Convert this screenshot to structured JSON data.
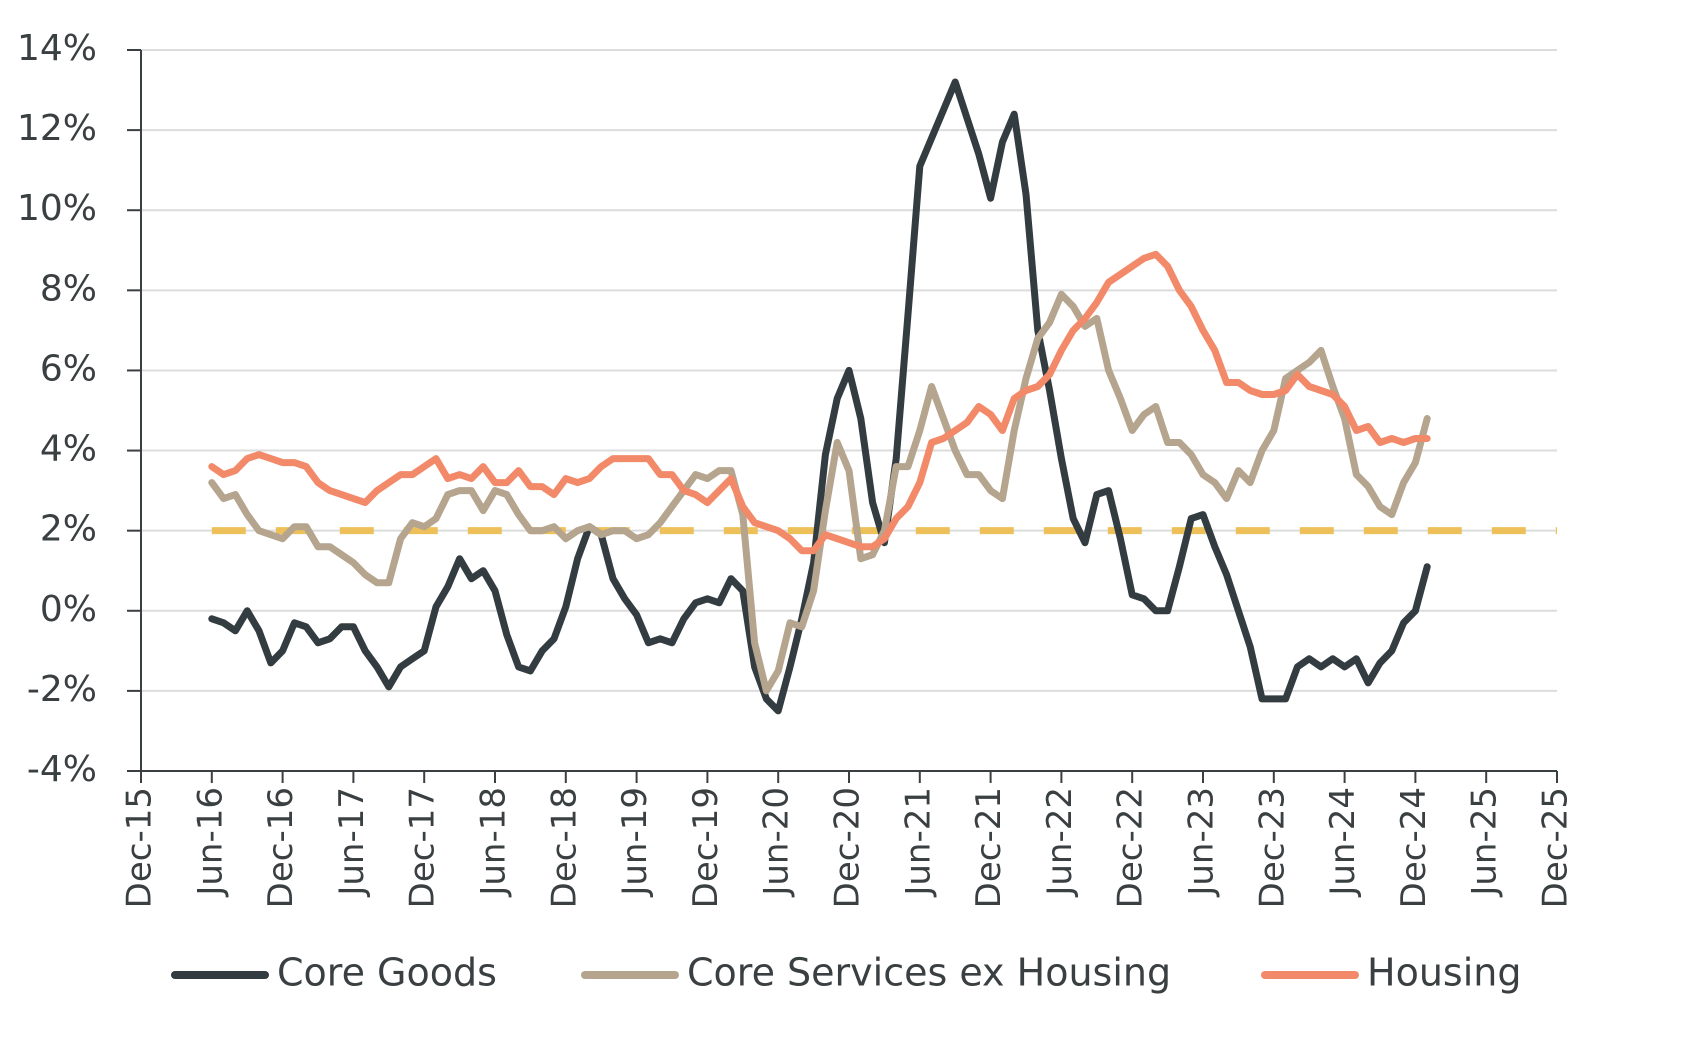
{
  "chart_data": {
    "type": "line",
    "x": [
      "2016-06",
      "2016-07",
      "2016-08",
      "2016-09",
      "2016-10",
      "2016-11",
      "2016-12",
      "2017-01",
      "2017-02",
      "2017-03",
      "2017-04",
      "2017-05",
      "2017-06",
      "2017-07",
      "2017-08",
      "2017-09",
      "2017-10",
      "2017-11",
      "2017-12",
      "2018-01",
      "2018-02",
      "2018-03",
      "2018-04",
      "2018-05",
      "2018-06",
      "2018-07",
      "2018-08",
      "2018-09",
      "2018-10",
      "2018-11",
      "2018-12",
      "2019-01",
      "2019-02",
      "2019-03",
      "2019-04",
      "2019-05",
      "2019-06",
      "2019-07",
      "2019-08",
      "2019-09",
      "2019-10",
      "2019-11",
      "2019-12",
      "2020-01",
      "2020-02",
      "2020-03",
      "2020-04",
      "2020-05",
      "2020-06",
      "2020-07",
      "2020-08",
      "2020-09",
      "2020-10",
      "2020-11",
      "2020-12",
      "2021-01",
      "2021-02",
      "2021-03",
      "2021-04",
      "2021-05",
      "2021-06",
      "2021-07",
      "2021-08",
      "2021-09",
      "2021-10",
      "2021-11",
      "2021-12",
      "2022-01",
      "2022-02",
      "2022-03",
      "2022-04",
      "2022-05",
      "2022-06",
      "2022-07",
      "2022-08",
      "2022-09",
      "2022-10",
      "2022-11",
      "2022-12",
      "2023-01",
      "2023-02",
      "2023-03",
      "2023-04",
      "2023-05",
      "2023-06",
      "2023-07",
      "2023-08",
      "2023-09",
      "2023-10",
      "2023-11",
      "2023-12",
      "2024-01",
      "2024-02",
      "2024-03",
      "2024-04",
      "2024-05",
      "2024-06",
      "2024-07",
      "2024-08",
      "2024-09",
      "2024-10",
      "2024-11",
      "2024-12",
      "2025-01"
    ],
    "series": [
      {
        "name": "Core Goods",
        "color": "#333c40",
        "values": [
          -0.2,
          -0.3,
          -0.5,
          0,
          -0.5,
          -1.3,
          -1.0,
          -0.3,
          -0.4,
          -0.8,
          -0.7,
          -0.4,
          -0.4,
          -1.0,
          -1.4,
          -1.9,
          -1.4,
          -1.2,
          -1.0,
          0.1,
          0.6,
          1.3,
          0.8,
          1.0,
          0.5,
          -0.6,
          -1.4,
          -1.5,
          -1.0,
          -0.7,
          0.1,
          1.3,
          2.1,
          1.9,
          0.8,
          0.3,
          -0.1,
          -0.8,
          -0.7,
          -0.8,
          -0.2,
          0.2,
          0.3,
          0.2,
          0.8,
          0.5,
          -1.4,
          -2.2,
          -2.5,
          -1.4,
          -0.2,
          1.2,
          3.9,
          5.3,
          6.0,
          4.8,
          2.7,
          1.7,
          3.8,
          7.4,
          11.1,
          11.8,
          12.5,
          13.2,
          12.3,
          11.4,
          10.3,
          11.7,
          12.4,
          10.4,
          7.0,
          5.5,
          3.8,
          2.3,
          1.7,
          2.9,
          3.0,
          1.8,
          0.4,
          0.3,
          0.0,
          0.0,
          1.1,
          2.3,
          2.4,
          1.6,
          0.9,
          0.0,
          -0.9,
          -2.2,
          -2.2,
          -2.2,
          -1.4,
          -1.2,
          -1.4,
          -1.2,
          -1.4,
          -1.2,
          -1.8,
          -1.3,
          -1.0,
          -0.3,
          0.0,
          1.1
        ]
      },
      {
        "name": "Core Services ex Housing",
        "color": "#b5a48e",
        "values": [
          3.2,
          2.8,
          2.9,
          2.4,
          2.0,
          1.9,
          1.8,
          2.1,
          2.1,
          1.6,
          1.6,
          1.4,
          1.2,
          0.9,
          0.7,
          0.7,
          1.8,
          2.2,
          2.1,
          2.3,
          2.9,
          3.0,
          3.0,
          2.5,
          3.0,
          2.9,
          2.4,
          2.0,
          2.0,
          2.1,
          1.8,
          2.0,
          2.1,
          1.9,
          2.0,
          2.0,
          1.8,
          1.9,
          2.2,
          2.6,
          3.0,
          3.4,
          3.3,
          3.5,
          3.5,
          2.4,
          -0.8,
          -2.0,
          -1.5,
          -0.3,
          -0.4,
          0.5,
          2.5,
          4.2,
          3.5,
          1.3,
          1.4,
          2.0,
          3.6,
          3.6,
          4.5,
          5.6,
          4.8,
          4.0,
          3.4,
          3.4,
          3.0,
          2.8,
          4.5,
          5.8,
          6.8,
          7.2,
          7.9,
          7.6,
          7.1,
          7.3,
          6.0,
          5.3,
          4.5,
          4.9,
          5.1,
          4.2,
          4.2,
          3.9,
          3.4,
          3.2,
          2.8,
          3.5,
          3.2,
          4.0,
          4.5,
          5.8,
          6.0,
          6.2,
          6.5,
          5.6,
          4.8,
          3.4,
          3.1,
          2.6,
          2.4,
          3.2,
          3.7,
          4.8
        ]
      },
      {
        "name": "Housing",
        "color": "#f28a6a",
        "values": [
          3.6,
          3.4,
          3.5,
          3.8,
          3.9,
          3.8,
          3.7,
          3.7,
          3.6,
          3.2,
          3.0,
          2.9,
          2.8,
          2.7,
          3.0,
          3.2,
          3.4,
          3.4,
          3.6,
          3.8,
          3.3,
          3.4,
          3.3,
          3.6,
          3.2,
          3.2,
          3.5,
          3.1,
          3.1,
          2.9,
          3.3,
          3.2,
          3.3,
          3.6,
          3.8,
          3.8,
          3.8,
          3.8,
          3.4,
          3.4,
          3.0,
          2.9,
          2.7,
          3.0,
          3.3,
          2.6,
          2.2,
          2.1,
          2.0,
          1.8,
          1.5,
          1.5,
          1.9,
          1.8,
          1.7,
          1.6,
          1.6,
          1.8,
          2.3,
          2.6,
          3.2,
          4.2,
          4.3,
          4.5,
          4.7,
          5.1,
          4.9,
          4.5,
          5.3,
          5.5,
          5.6,
          5.9,
          6.5,
          7.0,
          7.3,
          7.7,
          8.2,
          8.4,
          8.6,
          8.8,
          8.9,
          8.6,
          8.0,
          7.6,
          7.0,
          6.5,
          5.7,
          5.7,
          5.5,
          5.4,
          5.4,
          5.5,
          5.9,
          5.6,
          5.5,
          5.4,
          5.1,
          4.5,
          4.6,
          4.2,
          4.3,
          4.2,
          4.3,
          4.3
        ]
      }
    ],
    "reference_line": {
      "value": 2,
      "color": "#eec05a"
    },
    "xlim": [
      "2015-12",
      "2025-12"
    ],
    "xticks": [
      {
        "value": "2015-12",
        "label": "Dec-15"
      },
      {
        "value": "2016-06",
        "label": "Jun-16"
      },
      {
        "value": "2016-12",
        "label": "Dec-16"
      },
      {
        "value": "2017-06",
        "label": "Jun-17"
      },
      {
        "value": "2017-12",
        "label": "Dec-17"
      },
      {
        "value": "2018-06",
        "label": "Jun-18"
      },
      {
        "value": "2018-12",
        "label": "Dec-18"
      },
      {
        "value": "2019-06",
        "label": "Jun-19"
      },
      {
        "value": "2019-12",
        "label": "Dec-19"
      },
      {
        "value": "2020-06",
        "label": "Jun-20"
      },
      {
        "value": "2020-12",
        "label": "Dec-20"
      },
      {
        "value": "2021-06",
        "label": "Jun-21"
      },
      {
        "value": "2021-12",
        "label": "Dec-21"
      },
      {
        "value": "2022-06",
        "label": "Jun-22"
      },
      {
        "value": "2022-12",
        "label": "Dec-22"
      },
      {
        "value": "2023-06",
        "label": "Jun-23"
      },
      {
        "value": "2023-12",
        "label": "Dec-23"
      },
      {
        "value": "2024-06",
        "label": "Jun-24"
      },
      {
        "value": "2024-12",
        "label": "Dec-24"
      },
      {
        "value": "2025-06",
        "label": "Jun-25"
      },
      {
        "value": "2025-12",
        "label": "Dec-25"
      }
    ],
    "ylim": [
      -4,
      14
    ],
    "yticks": [
      {
        "value": -4,
        "label": "-4%"
      },
      {
        "value": -2,
        "label": "-2%"
      },
      {
        "value": 0,
        "label": "0%"
      },
      {
        "value": 2,
        "label": "2%"
      },
      {
        "value": 4,
        "label": "4%"
      },
      {
        "value": 6,
        "label": "6%"
      },
      {
        "value": 8,
        "label": "8%"
      },
      {
        "value": 10,
        "label": "10%"
      },
      {
        "value": 12,
        "label": "12%"
      },
      {
        "value": 14,
        "label": "14%"
      }
    ],
    "grid": true,
    "legend": "bottom"
  }
}
